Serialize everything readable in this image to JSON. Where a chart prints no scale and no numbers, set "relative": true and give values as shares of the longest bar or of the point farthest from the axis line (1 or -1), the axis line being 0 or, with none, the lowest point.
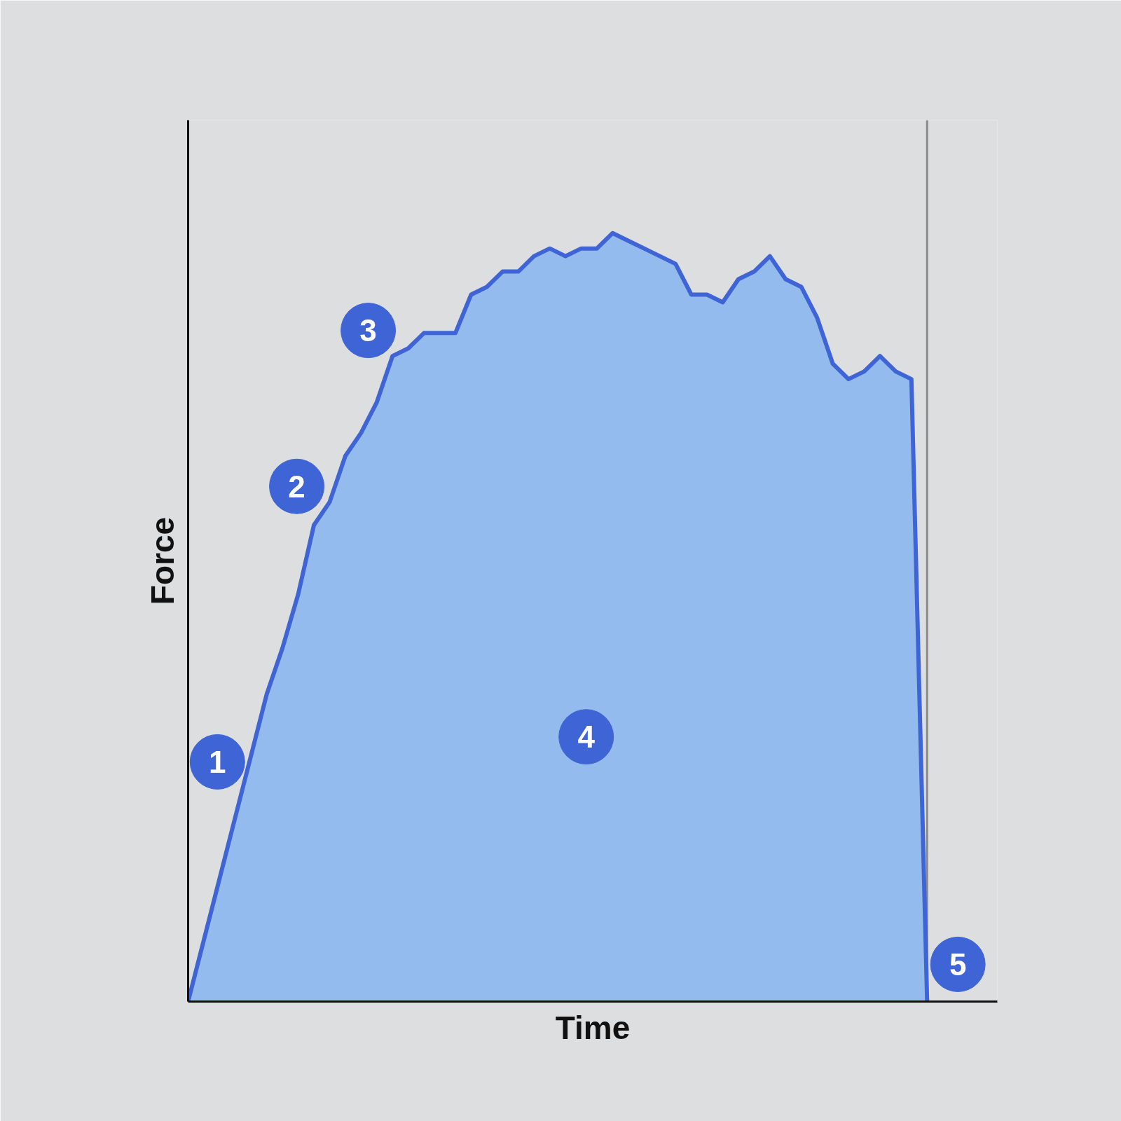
{
  "chart_data": {
    "type": "area",
    "relative": true,
    "xlabel": "Time",
    "ylabel": "Force",
    "categories": [
      null,
      null,
      null,
      null,
      null,
      null,
      null,
      null,
      null,
      null,
      null,
      null,
      null,
      null,
      null,
      null,
      null,
      null,
      null,
      null,
      null,
      null,
      null,
      null,
      null,
      null,
      null,
      null,
      null,
      null,
      null,
      null,
      null,
      null,
      null,
      null,
      null,
      null,
      null,
      null,
      null,
      null,
      null,
      null,
      null,
      null,
      null,
      null
    ],
    "series": [
      {
        "color": "#3f64d6",
        "values": [
          0,
          0.08,
          0.16,
          0.24,
          0.32,
          0.4,
          0.46,
          0.53,
          0.62,
          0.65,
          0.71,
          0.74,
          0.78,
          0.84,
          0.85,
          0.87,
          0.87,
          0.87,
          0.92,
          0.93,
          0.95,
          0.95,
          0.97,
          0.98,
          0.97,
          0.98,
          0.98,
          1.0,
          0.99,
          0.98,
          0.97,
          0.96,
          0.92,
          0.92,
          0.91,
          0.94,
          0.95,
          0.97,
          0.94,
          0.93,
          0.89,
          0.83,
          0.81,
          0.82,
          0.84,
          0.82,
          0.81,
          0
        ]
      }
    ],
    "annotations": [
      "1",
      "2",
      "3",
      "4",
      "5"
    ]
  }
}
